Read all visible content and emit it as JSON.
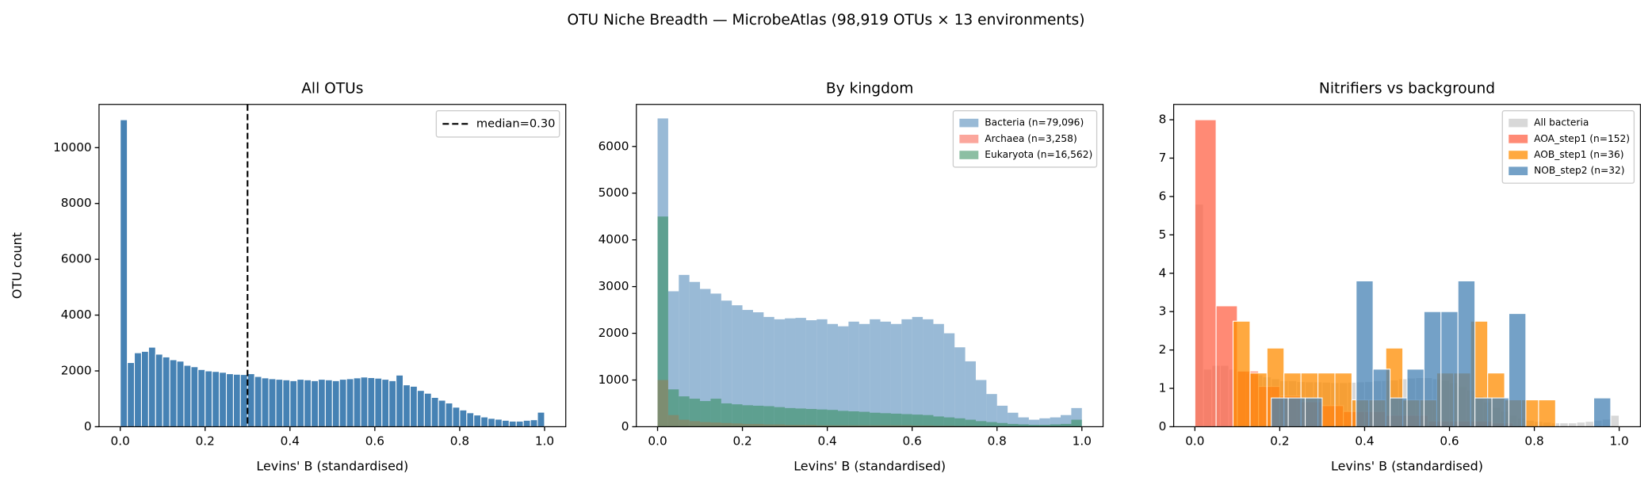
{
  "title": "OTU Niche Breadth — MicrobeAtlas (98,919 OTUs × 13 environments)",
  "chart_data": [
    {
      "type": "histogram",
      "title": "All OTUs",
      "xlabel": "Levins' B (standardised)",
      "ylabel": "OTU count",
      "bins": [
        0,
        0.0167,
        0.0333,
        0.05,
        0.0667,
        0.0833,
        0.1,
        0.1167,
        0.1333,
        0.15,
        0.1667,
        0.1833,
        0.2,
        0.2167,
        0.2333,
        0.25,
        0.2667,
        0.2833,
        0.3,
        0.3167,
        0.3333,
        0.35,
        0.3667,
        0.3833,
        0.4,
        0.4167,
        0.4333,
        0.45,
        0.4667,
        0.4833,
        0.5,
        0.5167,
        0.5333,
        0.55,
        0.5667,
        0.5833,
        0.6,
        0.6167,
        0.6333,
        0.65,
        0.6667,
        0.6833,
        0.7,
        0.7167,
        0.7333,
        0.75,
        0.7667,
        0.7833,
        0.8,
        0.8167,
        0.8333,
        0.85,
        0.8667,
        0.8833,
        0.9,
        0.9167,
        0.9333,
        0.95,
        0.9667,
        0.9833,
        1
      ],
      "values": [
        11000,
        2300,
        2650,
        2700,
        2850,
        2600,
        2500,
        2400,
        2350,
        2200,
        2150,
        2050,
        2000,
        1980,
        1950,
        1900,
        1880,
        1870,
        1900,
        1800,
        1750,
        1720,
        1700,
        1680,
        1650,
        1700,
        1680,
        1650,
        1700,
        1680,
        1650,
        1700,
        1720,
        1750,
        1780,
        1760,
        1740,
        1700,
        1650,
        1850,
        1500,
        1450,
        1300,
        1200,
        1050,
        950,
        850,
        700,
        600,
        500,
        420,
        350,
        300,
        270,
        230,
        200,
        200,
        230,
        250,
        520
      ],
      "color": "#4682b4",
      "edgecolor": "#ffffff",
      "vline": {
        "value": 0.3,
        "label": "median=0.30",
        "color": "#000000"
      },
      "xlim": [
        -0.05,
        1.05
      ],
      "xticks": [
        {
          "value": 0,
          "label": "0.0"
        },
        0.2,
        0.4,
        0.6,
        0.8,
        {
          "value": 1,
          "label": "1.0"
        }
      ],
      "ylim": [
        0,
        11550
      ],
      "yticks": [
        0,
        2000,
        4000,
        6000,
        8000,
        10000
      ],
      "legend": "upper right"
    },
    {
      "type": "histogram",
      "title": "By kingdom",
      "xlabel": "Levins' B (standardised)",
      "bins": [
        0,
        0.025,
        0.05,
        0.075,
        0.1,
        0.125,
        0.15,
        0.175,
        0.2,
        0.225,
        0.25,
        0.275,
        0.3,
        0.325,
        0.35,
        0.375,
        0.4,
        0.425,
        0.45,
        0.475,
        0.5,
        0.525,
        0.55,
        0.575,
        0.6,
        0.625,
        0.65,
        0.675,
        0.7,
        0.725,
        0.75,
        0.775,
        0.8,
        0.825,
        0.85,
        0.875,
        0.9,
        0.925,
        0.95,
        0.975,
        1
      ],
      "series": [
        {
          "name": "Bacteria (n=79,096)",
          "color": "#4682b4",
          "alpha": 0.55,
          "values": [
            6600,
            2900,
            3250,
            3100,
            2950,
            2850,
            2700,
            2600,
            2500,
            2450,
            2350,
            2300,
            2320,
            2330,
            2280,
            2300,
            2200,
            2150,
            2250,
            2200,
            2300,
            2250,
            2200,
            2300,
            2350,
            2300,
            2200,
            2000,
            1700,
            1400,
            1000,
            700,
            450,
            300,
            200,
            150,
            180,
            200,
            250,
            400
          ]
        },
        {
          "name": "Archaea (n=3,258)",
          "color": "#fa8072",
          "alpha": 0.7,
          "values": [
            1000,
            250,
            150,
            120,
            100,
            90,
            80,
            70,
            60,
            60,
            50,
            50,
            40,
            40,
            40,
            30,
            30,
            30,
            30,
            30,
            30,
            30,
            30,
            30,
            25,
            25,
            20,
            20,
            15,
            15,
            10,
            10,
            10,
            5,
            5,
            5,
            5,
            5,
            5,
            10
          ]
        },
        {
          "name": "Eukaryota (n=16,562)",
          "color": "#2e8b57",
          "alpha": 0.55,
          "values": [
            4500,
            800,
            650,
            600,
            550,
            600,
            500,
            480,
            460,
            450,
            440,
            420,
            400,
            390,
            380,
            370,
            360,
            340,
            330,
            320,
            300,
            290,
            280,
            270,
            260,
            250,
            220,
            200,
            180,
            150,
            120,
            100,
            80,
            60,
            50,
            40,
            40,
            50,
            60,
            150
          ]
        }
      ],
      "xlim": [
        -0.05,
        1.05
      ],
      "xticks": [
        {
          "value": 0,
          "label": "0.0"
        },
        0.2,
        0.4,
        0.6,
        0.8,
        {
          "value": 1,
          "label": "1.0"
        }
      ],
      "ylim": [
        0,
        6900
      ],
      "yticks": [
        0,
        1000,
        2000,
        3000,
        4000,
        5000,
        6000
      ],
      "legend": "upper right"
    },
    {
      "type": "histogram",
      "title": "Nitrifiers vs background",
      "xlabel": "Levins' B (standardised)",
      "edgecolor": "#ffffff",
      "series": [
        {
          "name": "All bacteria",
          "color": "#c8c8c8",
          "alpha": 0.7,
          "bins": [
            0,
            0.02,
            0.04,
            0.06,
            0.08,
            0.1,
            0.12,
            0.14,
            0.16,
            0.18,
            0.2,
            0.22,
            0.24,
            0.26,
            0.28,
            0.3,
            0.32,
            0.34,
            0.36,
            0.38,
            0.4,
            0.42,
            0.44,
            0.46,
            0.48,
            0.5,
            0.52,
            0.54,
            0.56,
            0.58,
            0.6,
            0.62,
            0.64,
            0.66,
            0.68,
            0.7,
            0.72,
            0.74,
            0.76,
            0.78,
            0.8,
            0.82,
            0.84,
            0.86,
            0.88,
            0.9,
            0.92,
            0.94,
            0.96,
            0.98,
            1
          ],
          "values": [
            5.8,
            1.5,
            1.6,
            1.6,
            1.5,
            1.45,
            1.4,
            1.35,
            1.3,
            1.25,
            1.2,
            1.2,
            1.18,
            1.17,
            1.17,
            1.16,
            1.15,
            1.15,
            1.16,
            1.17,
            1.18,
            1.2,
            1.2,
            1.22,
            1.25,
            1.27,
            1.28,
            1.28,
            1.25,
            1.2,
            1.15,
            1.05,
            0.95,
            0.8,
            0.65,
            0.5,
            0.4,
            0.3,
            0.22,
            0.17,
            0.14,
            0.12,
            0.1,
            0.1,
            0.1,
            0.12,
            0.14,
            0.17,
            0.2,
            0.3
          ]
        },
        {
          "name": "AOA_step1 (n=152)",
          "color": "#ff6347",
          "alpha": 0.75,
          "bins": [
            0,
            0.05,
            0.1,
            0.15,
            0.2,
            0.25,
            0.3,
            0.35,
            0.4,
            0.45,
            0.5,
            0.55,
            0.6,
            0.65,
            0.7,
            0.75,
            0.8,
            0.85,
            0.9,
            0.95,
            1
          ],
          "values": [
            8.0,
            3.15,
            1.45,
            1.05,
            0.8,
            0.65,
            0.55,
            0.4,
            0.4,
            0.3,
            0.3,
            0.15,
            0.15,
            0.15,
            0.1,
            0,
            0,
            0,
            0,
            0
          ]
        },
        {
          "name": "AOB_step1 (n=36)",
          "color": "#ff8c00",
          "alpha": 0.75,
          "bins": [
            0.09,
            0.13,
            0.17,
            0.21,
            0.25,
            0.29,
            0.33,
            0.37,
            0.41,
            0.45,
            0.49,
            0.53,
            0.57,
            0.61,
            0.65,
            0.69,
            0.73,
            0.77,
            0.81,
            0.85,
            0.89
          ],
          "values": [
            2.75,
            1.4,
            2.05,
            1.4,
            1.4,
            1.4,
            1.4,
            0.7,
            0.7,
            2.05,
            0.7,
            0.7,
            1.4,
            1.4,
            2.75,
            1.4,
            0.7,
            0.7,
            0.7,
            0
          ]
        },
        {
          "name": "NOB_step2 (n=32)",
          "color": "#4682b4",
          "alpha": 0.75,
          "bins": [
            0.18,
            0.22,
            0.26,
            0.3,
            0.34,
            0.38,
            0.42,
            0.46,
            0.5,
            0.54,
            0.58,
            0.62,
            0.66,
            0.7,
            0.74,
            0.78,
            0.82,
            0.86,
            0.9,
            0.94,
            0.98
          ],
          "values": [
            0.75,
            0.75,
            0.75,
            0,
            0,
            3.8,
            1.5,
            0.75,
            1.5,
            3.0,
            3.0,
            3.8,
            0.75,
            0.75,
            2.95,
            0,
            0,
            0,
            0,
            0.75
          ]
        }
      ],
      "xlim": [
        -0.05,
        1.05
      ],
      "xticks": [
        {
          "value": 0,
          "label": "0.0"
        },
        0.2,
        0.4,
        0.6,
        0.8,
        {
          "value": 1,
          "label": "1.0"
        }
      ],
      "ylim": [
        0,
        8.4
      ],
      "yticks": [
        0,
        1,
        2,
        3,
        4,
        5,
        6,
        7,
        8
      ],
      "legend": "upper right"
    }
  ]
}
